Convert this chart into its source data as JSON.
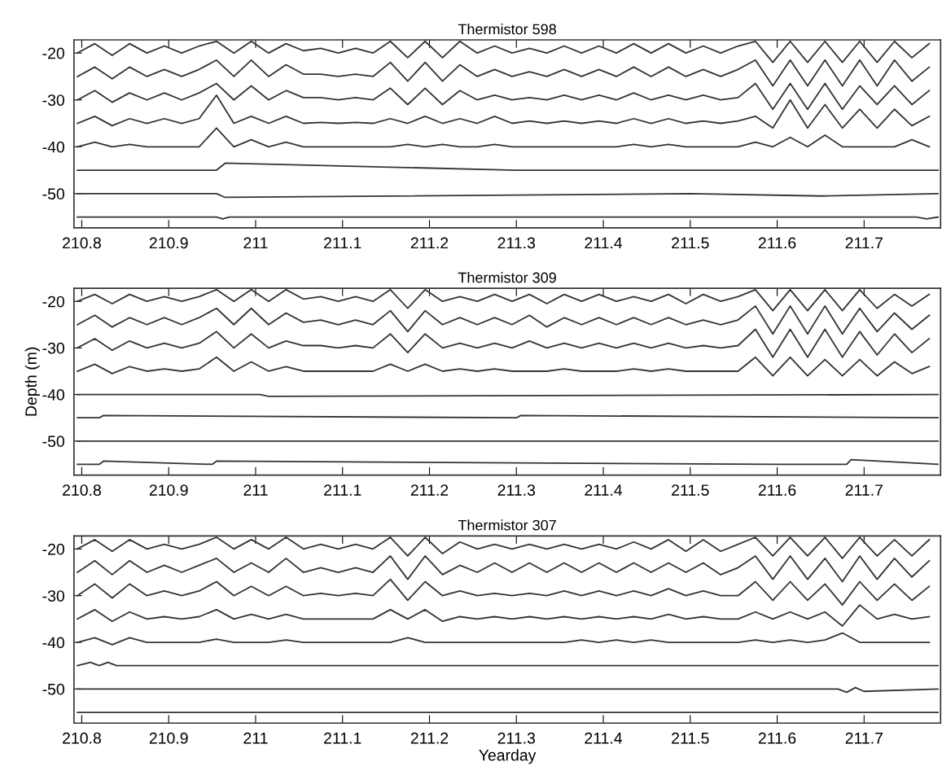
{
  "chart_data": [
    {
      "type": "line",
      "title": "Thermistor 598",
      "xlim": [
        210.791,
        211.788
      ],
      "ylim": [
        -57.3,
        -17.2
      ],
      "xticks": [
        210.8,
        210.9,
        211,
        211.1,
        211.2,
        211.3,
        211.4,
        211.5,
        211.6,
        211.7
      ],
      "yticks": [
        -20,
        -30,
        -40,
        -50
      ],
      "grid": false,
      "marker": "none",
      "line_style": "solid",
      "x": [
        210.795,
        210.815,
        210.835,
        210.855,
        210.875,
        210.895,
        210.915,
        210.935,
        210.955,
        210.975,
        210.995,
        211.015,
        211.035,
        211.055,
        211.075,
        211.095,
        211.115,
        211.135,
        211.155,
        211.175,
        211.195,
        211.215,
        211.235,
        211.255,
        211.275,
        211.295,
        211.315,
        211.335,
        211.355,
        211.375,
        211.395,
        211.415,
        211.435,
        211.455,
        211.475,
        211.495,
        211.515,
        211.535,
        211.555,
        211.575,
        211.595,
        211.615,
        211.635,
        211.655,
        211.675,
        211.695,
        211.715,
        211.735,
        211.755,
        211.775
      ],
      "series": [
        {
          "color": "#333333",
          "values": [
            -20,
            -18,
            -20.5,
            -18,
            -20,
            -18.5,
            -20,
            -18.5,
            -17.5,
            -20,
            -17.5,
            -20,
            -18,
            -19.5,
            -19,
            -20,
            -19,
            -20,
            -17.5,
            -21,
            -17.5,
            -21,
            -17.5,
            -20,
            -18.5,
            -20,
            -19,
            -20,
            -18.5,
            -20,
            -18.5,
            -20,
            -18,
            -20,
            -18,
            -20,
            -18.5,
            -20,
            -18.5,
            -17.5,
            -22,
            -17.5,
            -22,
            -17.5,
            -22,
            -17.5,
            -22,
            -17.5,
            -21,
            -18
          ]
        },
        {
          "color": "#333333",
          "values": [
            -25,
            -23,
            -25.5,
            -23,
            -25,
            -23.5,
            -25,
            -23.5,
            -21.5,
            -25,
            -21.5,
            -25,
            -22.5,
            -24.5,
            -24.5,
            -25,
            -24.5,
            -25,
            -22,
            -26,
            -22,
            -26,
            -22.5,
            -25,
            -23.5,
            -25,
            -24,
            -25,
            -23.5,
            -25,
            -23.5,
            -25,
            -23,
            -25,
            -23,
            -25,
            -23.5,
            -25,
            -23.5,
            -21.5,
            -27,
            -21.5,
            -27,
            -21.5,
            -27,
            -21.5,
            -27,
            -21.5,
            -26,
            -23
          ]
        },
        {
          "color": "#333333",
          "values": [
            -30,
            -28,
            -30.5,
            -28.5,
            -30,
            -28.5,
            -30,
            -28.5,
            -26.5,
            -30,
            -27,
            -30,
            -28,
            -29.5,
            -29.5,
            -30,
            -29.5,
            -30,
            -27.5,
            -31,
            -27.5,
            -31,
            -28,
            -30,
            -29,
            -30,
            -29.5,
            -30,
            -29,
            -30,
            -29,
            -30,
            -28.5,
            -30,
            -29,
            -30,
            -29,
            -30,
            -29.5,
            -26.5,
            -32,
            -26.5,
            -32,
            -26.5,
            -32,
            -27,
            -31,
            -27,
            -31,
            -28
          ]
        },
        {
          "color": "#333333",
          "values": [
            -35,
            -33.5,
            -35.5,
            -34,
            -35,
            -34,
            -35,
            -34,
            -29,
            -35,
            -33.5,
            -35,
            -33.5,
            -35,
            -34.8,
            -35,
            -34.8,
            -35,
            -34,
            -35,
            -33.5,
            -35,
            -34,
            -35,
            -33.5,
            -35,
            -34.5,
            -35,
            -34.5,
            -35,
            -34.5,
            -35,
            -34,
            -35,
            -34,
            -35,
            -34.5,
            -35,
            -34.5,
            -33.5,
            -36,
            -30,
            -36,
            -31,
            -36,
            -32,
            -36,
            -32,
            -35.5,
            -33.5
          ]
        },
        {
          "color": "#333333",
          "values": [
            -40,
            -39,
            -40,
            -39.5,
            -40,
            -40,
            -40,
            -40,
            -36,
            -40,
            -38.5,
            -40,
            -39,
            -40,
            -40,
            -40,
            -40,
            -40,
            -40,
            -39.5,
            -40,
            -39.5,
            -40,
            -40,
            -39.5,
            -40,
            -40,
            -40,
            -40,
            -40,
            -40,
            -40,
            -39.5,
            -40,
            -39.5,
            -40,
            -40,
            -40,
            -40,
            -39,
            -40,
            -38,
            -40,
            -37.5,
            -40,
            -40,
            -40,
            -40,
            -38.5,
            -40
          ]
        },
        {
          "color": "#333333",
          "x": [
            210.795,
            210.955,
            210.965,
            211.3,
            211.6,
            211.785
          ],
          "values": [
            -45,
            -45,
            -43.5,
            -45,
            -45,
            -45
          ]
        },
        {
          "color": "#333333",
          "x": [
            210.795,
            210.955,
            210.965,
            211.5,
            211.65,
            211.785
          ],
          "values": [
            -50,
            -50,
            -50.8,
            -50,
            -50.5,
            -50
          ]
        },
        {
          "color": "#333333",
          "x": [
            210.795,
            210.955,
            210.962,
            210.97,
            211.25,
            211.76,
            211.772,
            211.785
          ],
          "values": [
            -55,
            -55,
            -55.4,
            -55,
            -55,
            -55,
            -55.4,
            -55
          ]
        }
      ]
    },
    {
      "type": "line",
      "title": "Thermistor 309",
      "ylabel": "Depth (m)",
      "xlim": [
        210.791,
        211.788
      ],
      "ylim": [
        -57.3,
        -17.2
      ],
      "xticks": [
        210.8,
        210.9,
        211,
        211.1,
        211.2,
        211.3,
        211.4,
        211.5,
        211.6,
        211.7
      ],
      "yticks": [
        -20,
        -30,
        -40,
        -50
      ],
      "grid": false,
      "marker": "none",
      "line_style": "solid",
      "x": [
        210.795,
        210.815,
        210.835,
        210.855,
        210.875,
        210.895,
        210.915,
        210.935,
        210.955,
        210.975,
        210.995,
        211.015,
        211.035,
        211.055,
        211.075,
        211.095,
        211.115,
        211.135,
        211.155,
        211.175,
        211.195,
        211.215,
        211.235,
        211.255,
        211.275,
        211.295,
        211.315,
        211.335,
        211.355,
        211.375,
        211.395,
        211.415,
        211.435,
        211.455,
        211.475,
        211.495,
        211.515,
        211.535,
        211.555,
        211.575,
        211.595,
        211.615,
        211.635,
        211.655,
        211.675,
        211.695,
        211.715,
        211.735,
        211.755,
        211.775
      ],
      "series": [
        {
          "color": "#333333",
          "values": [
            -20,
            -18.5,
            -20.5,
            -18.5,
            -20,
            -19,
            -20,
            -19,
            -17.5,
            -20,
            -17.5,
            -20,
            -17.5,
            -19.5,
            -19,
            -20,
            -19,
            -20,
            -17.5,
            -21.5,
            -17.5,
            -20,
            -19,
            -20,
            -18.5,
            -20,
            -18.5,
            -20.5,
            -18.5,
            -20,
            -18.5,
            -20,
            -19,
            -20,
            -18.5,
            -20.5,
            -18.5,
            -20,
            -19,
            -17.5,
            -22,
            -17.5,
            -22,
            -17.5,
            -22,
            -17.5,
            -21.5,
            -18.5,
            -21,
            -18.5
          ]
        },
        {
          "color": "#333333",
          "values": [
            -25,
            -23,
            -25.5,
            -23.5,
            -25,
            -23.5,
            -25,
            -23.5,
            -21.5,
            -25,
            -21.5,
            -25,
            -22.5,
            -24.5,
            -24,
            -25,
            -24,
            -25,
            -22,
            -26.5,
            -22,
            -25,
            -23.5,
            -25,
            -23.5,
            -25,
            -23,
            -25.5,
            -23.5,
            -25,
            -23.5,
            -25,
            -23.5,
            -25,
            -23.5,
            -25,
            -24,
            -25,
            -24,
            -21,
            -27,
            -21,
            -27,
            -21,
            -27,
            -21.5,
            -26.5,
            -22.5,
            -26,
            -23
          ]
        },
        {
          "color": "#333333",
          "values": [
            -30,
            -28,
            -30.5,
            -28.5,
            -30,
            -29,
            -30,
            -29,
            -26.5,
            -30,
            -27,
            -30,
            -28.5,
            -29.5,
            -29.5,
            -30,
            -29.5,
            -30,
            -27,
            -31,
            -27,
            -30,
            -29,
            -30,
            -29,
            -30,
            -28.5,
            -30,
            -29,
            -30,
            -29,
            -30,
            -29,
            -30,
            -29,
            -30,
            -29.5,
            -30,
            -29.5,
            -26,
            -32,
            -26,
            -32,
            -26,
            -32,
            -26.5,
            -31.5,
            -27,
            -31,
            -28
          ]
        },
        {
          "color": "#333333",
          "values": [
            -35,
            -33.5,
            -35.5,
            -34,
            -35,
            -34.5,
            -35,
            -34.5,
            -32,
            -35,
            -33,
            -35,
            -34,
            -35,
            -35,
            -35,
            -35,
            -35,
            -33.5,
            -35,
            -33.5,
            -35,
            -34.5,
            -35,
            -34.5,
            -35,
            -35,
            -35,
            -34.5,
            -35,
            -35,
            -35,
            -34.5,
            -35,
            -34.5,
            -35,
            -35,
            -35,
            -35,
            -32,
            -36,
            -32,
            -36,
            -32.5,
            -36,
            -32.5,
            -36,
            -33,
            -35.5,
            -34
          ]
        },
        {
          "color": "#333333",
          "x": [
            210.795,
            211.005,
            211.015,
            211.785
          ],
          "values": [
            -40,
            -40,
            -40.4,
            -40
          ]
        },
        {
          "color": "#333333",
          "x": [
            210.795,
            210.82,
            210.825,
            211.3,
            211.305,
            211.785
          ],
          "values": [
            -45,
            -45,
            -44.5,
            -45,
            -44.5,
            -45
          ]
        },
        {
          "color": "#333333",
          "x": [
            210.795,
            211.785
          ],
          "values": [
            -50,
            -50
          ]
        },
        {
          "color": "#333333",
          "x": [
            210.795,
            210.82,
            210.825,
            210.95,
            210.955,
            211.6,
            211.68,
            211.685,
            211.785
          ],
          "values": [
            -55,
            -55,
            -54.3,
            -55,
            -54.3,
            -55,
            -55,
            -54,
            -55
          ]
        }
      ]
    },
    {
      "type": "line",
      "title": "Thermistor 307",
      "xlabel": "Yearday",
      "xlim": [
        210.791,
        211.788
      ],
      "ylim": [
        -57.3,
        -17.2
      ],
      "xticks": [
        210.8,
        210.9,
        211,
        211.1,
        211.2,
        211.3,
        211.4,
        211.5,
        211.6,
        211.7
      ],
      "yticks": [
        -20,
        -30,
        -40,
        -50
      ],
      "grid": false,
      "marker": "none",
      "line_style": "solid",
      "x": [
        210.795,
        210.815,
        210.835,
        210.855,
        210.875,
        210.895,
        210.915,
        210.935,
        210.955,
        210.975,
        210.995,
        211.015,
        211.035,
        211.055,
        211.075,
        211.095,
        211.115,
        211.135,
        211.155,
        211.175,
        211.195,
        211.215,
        211.235,
        211.255,
        211.275,
        211.295,
        211.315,
        211.335,
        211.355,
        211.375,
        211.395,
        211.415,
        211.435,
        211.455,
        211.475,
        211.495,
        211.515,
        211.535,
        211.555,
        211.575,
        211.595,
        211.615,
        211.635,
        211.655,
        211.675,
        211.695,
        211.715,
        211.735,
        211.755,
        211.775
      ],
      "series": [
        {
          "color": "#333333",
          "values": [
            -20,
            -18,
            -20.5,
            -18,
            -20,
            -19,
            -20,
            -19,
            -17.5,
            -20,
            -18,
            -20,
            -17.5,
            -20,
            -19,
            -20,
            -19,
            -20,
            -17.5,
            -21.5,
            -17.5,
            -21,
            -18.5,
            -20,
            -19,
            -20,
            -19,
            -20,
            -19,
            -20,
            -19,
            -20,
            -18.5,
            -20,
            -18,
            -20.5,
            -18,
            -20.5,
            -19,
            -17.5,
            -21.5,
            -17.5,
            -21.5,
            -17.5,
            -22,
            -17.5,
            -21.5,
            -18,
            -21.5,
            -18
          ]
        },
        {
          "color": "#333333",
          "values": [
            -25,
            -22.5,
            -25.5,
            -22.5,
            -25,
            -23.5,
            -25,
            -23.5,
            -22,
            -25,
            -23,
            -25,
            -22,
            -25,
            -24,
            -25,
            -24,
            -25,
            -21.5,
            -26.5,
            -21.5,
            -25.5,
            -23.5,
            -25,
            -23,
            -25,
            -23,
            -25,
            -23,
            -25,
            -23,
            -25,
            -23,
            -25,
            -23,
            -25,
            -23,
            -25.5,
            -24,
            -21.5,
            -26.5,
            -21.5,
            -26.5,
            -22,
            -27,
            -21.5,
            -26.5,
            -22,
            -26,
            -22.5
          ]
        },
        {
          "color": "#333333",
          "values": [
            -30,
            -27.5,
            -30.5,
            -27.5,
            -30,
            -29,
            -30,
            -29,
            -27,
            -30,
            -28,
            -30,
            -28,
            -30,
            -29.5,
            -30,
            -29.5,
            -30,
            -26.5,
            -31,
            -27,
            -30,
            -29,
            -30,
            -29.5,
            -30,
            -29.5,
            -30,
            -29,
            -30,
            -29,
            -30,
            -29,
            -30,
            -28.5,
            -30,
            -29,
            -30,
            -30,
            -27,
            -31,
            -27,
            -31,
            -27.5,
            -32,
            -27,
            -31,
            -27.5,
            -31,
            -28
          ]
        },
        {
          "color": "#333333",
          "values": [
            -35,
            -33,
            -35.5,
            -33.5,
            -35,
            -34.5,
            -35,
            -34.5,
            -33,
            -35,
            -34,
            -35,
            -34,
            -35,
            -35,
            -35,
            -35,
            -35,
            -33,
            -35,
            -33,
            -35.5,
            -34.5,
            -35,
            -34.5,
            -35,
            -34.5,
            -35,
            -34.5,
            -35,
            -34.5,
            -35,
            -34.5,
            -35,
            -34,
            -35,
            -34.5,
            -35,
            -35,
            -33.5,
            -35,
            -33.5,
            -35,
            -33.5,
            -36.5,
            -32,
            -35,
            -34,
            -35,
            -34.5
          ]
        },
        {
          "color": "#333333",
          "values": [
            -40,
            -39,
            -40.5,
            -39,
            -40,
            -40,
            -40,
            -40,
            -39.3,
            -40,
            -40,
            -40,
            -39.5,
            -40,
            -40,
            -40,
            -40,
            -40,
            -40,
            -39,
            -40,
            -40,
            -40,
            -40,
            -40,
            -40,
            -40,
            -40,
            -40,
            -39.5,
            -40,
            -39.5,
            -40,
            -39.5,
            -40,
            -40,
            -40,
            -40,
            -40,
            -39.5,
            -40,
            -39.5,
            -40,
            -39.5,
            -38,
            -40,
            -40,
            -40,
            -40,
            -40
          ]
        },
        {
          "color": "#333333",
          "x": [
            210.795,
            210.81,
            210.82,
            210.83,
            210.84,
            211.785
          ],
          "values": [
            -45,
            -44.3,
            -45,
            -44.3,
            -45,
            -45
          ]
        },
        {
          "color": "#333333",
          "x": [
            210.795,
            211.67,
            211.68,
            211.69,
            211.7,
            211.785
          ],
          "values": [
            -50,
            -50,
            -50.7,
            -49.7,
            -50.5,
            -50
          ]
        },
        {
          "color": "#333333",
          "x": [
            210.795,
            211.785
          ],
          "values": [
            -55,
            -55
          ]
        }
      ]
    }
  ]
}
